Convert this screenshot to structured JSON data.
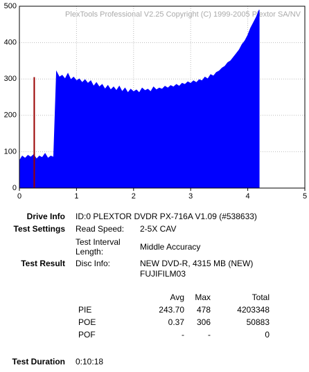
{
  "chart_data": {
    "type": "area",
    "watermark": "PlexTools Professional V2.25 Copyright (C) 1999-2005 Plextor SA/NV",
    "xlim": [
      0,
      5
    ],
    "xticks": [
      0,
      1,
      2,
      3,
      4,
      5
    ],
    "ylim": [
      0,
      500
    ],
    "yticks": [
      0,
      100,
      200,
      300,
      400,
      500
    ],
    "grid": true,
    "x": [
      0,
      0.05,
      0.1,
      0.15,
      0.2,
      0.25,
      0.3,
      0.35,
      0.4,
      0.45,
      0.5,
      0.55,
      0.6,
      0.65,
      0.7,
      0.75,
      0.8,
      0.85,
      0.9,
      0.95,
      1.0,
      1.05,
      1.1,
      1.15,
      1.2,
      1.25,
      1.3,
      1.35,
      1.4,
      1.45,
      1.5,
      1.55,
      1.6,
      1.65,
      1.7,
      1.75,
      1.8,
      1.85,
      1.9,
      1.95,
      2.0,
      2.05,
      2.1,
      2.15,
      2.2,
      2.25,
      2.3,
      2.35,
      2.4,
      2.45,
      2.5,
      2.55,
      2.6,
      2.65,
      2.7,
      2.75,
      2.8,
      2.85,
      2.9,
      2.95,
      3.0,
      3.05,
      3.1,
      3.15,
      3.2,
      3.25,
      3.3,
      3.35,
      3.4,
      3.45,
      3.5,
      3.55,
      3.6,
      3.65,
      3.7,
      3.75,
      3.8,
      3.85,
      3.9,
      3.95,
      4.0,
      4.05,
      4.1,
      4.15,
      4.2
    ],
    "series": [
      {
        "color": "#0000ff",
        "values": [
          75,
          88,
          82,
          90,
          85,
          92,
          80,
          88,
          84,
          95,
          82,
          88,
          85,
          320,
          305,
          310,
          300,
          315,
          298,
          305,
          295,
          300,
          290,
          298,
          288,
          295,
          280,
          290,
          278,
          285,
          272,
          282,
          270,
          278,
          268,
          280,
          265,
          275,
          262,
          272,
          265,
          270,
          262,
          275,
          268,
          272,
          265,
          278,
          270,
          275,
          272,
          280,
          275,
          282,
          278,
          285,
          280,
          288,
          285,
          292,
          288,
          295,
          290,
          298,
          295,
          305,
          300,
          312,
          308,
          318,
          322,
          330,
          335,
          345,
          350,
          360,
          370,
          380,
          395,
          405,
          420,
          440,
          455,
          470,
          490
        ]
      }
    ],
    "spikes": {
      "color": "#990000",
      "x": [
        0.26
      ],
      "values": [
        305
      ]
    }
  },
  "report": {
    "drive_label": "Drive Info",
    "drive_value": "ID:0 PLEXTOR DVDR PX-716A V1.09 (#538633)",
    "settings_label": "Test Settings",
    "read_speed_label": "Read Speed:",
    "read_speed_value": "2-5X CAV",
    "interval_label": "Test Interval Length:",
    "interval_value": "Middle Accuracy",
    "result_label": "Test Result",
    "disc_label": "Disc Info:",
    "disc_value": "NEW DVD-R, 4315 MB (NEW)",
    "disc_id": "FUJIFILM03",
    "table": {
      "header": [
        "Avg",
        "Max",
        "Total"
      ],
      "rows": [
        [
          "PIE",
          "243.70",
          "478",
          "4203348"
        ],
        [
          "POE",
          "0.37",
          "306",
          "50883"
        ],
        [
          "POF",
          "-",
          "-",
          "0"
        ]
      ]
    },
    "duration_label": "Test Duration",
    "duration_value": "0:10:18"
  }
}
